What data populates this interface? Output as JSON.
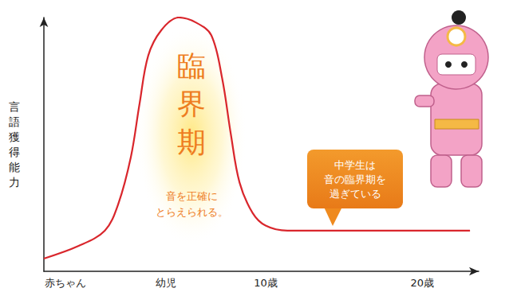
{
  "chart_data": {
    "type": "line",
    "y_label": "言語獲得能力",
    "x": [
      0,
      8,
      14,
      17,
      20,
      22,
      24,
      27,
      31,
      35,
      38.5,
      41,
      43,
      45,
      48,
      51,
      56,
      98
    ],
    "values": [
      5,
      10,
      16,
      26,
      45,
      66,
      85,
      95,
      100,
      98,
      93,
      76,
      54,
      35,
      23,
      18,
      16,
      16
    ],
    "color": "#d9262c",
    "marker": "none",
    "xlim": [
      0,
      100
    ],
    "xticks": [
      {
        "value": 5,
        "label": "赤ちゃん"
      },
      {
        "value": 28,
        "label": "幼児"
      },
      {
        "value": 51,
        "label": "10歳"
      },
      {
        "value": 87,
        "label": "20歳"
      }
    ],
    "ylim": [
      0,
      100
    ],
    "grid": false,
    "tick_labels": "x",
    "annotations": [
      {
        "lines": [
          "臨",
          "界",
          "期"
        ]
      },
      {
        "lines": [
          "音を正確に",
          "とらえられる。"
        ]
      },
      {
        "lines": [
          "中学生は",
          "音の臨界期を",
          "過ぎている"
        ]
      }
    ]
  }
}
